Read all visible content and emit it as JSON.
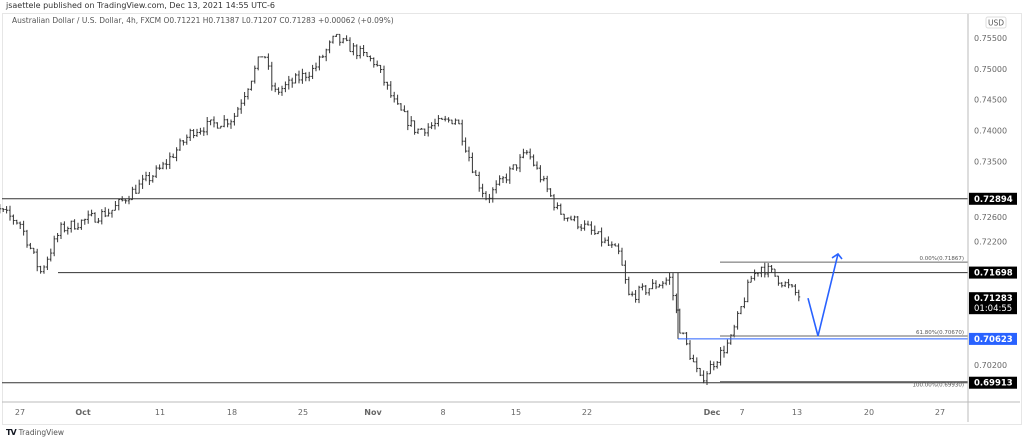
{
  "header": {
    "published": "jsaettele published on TradingView.com, Dec 13, 2021 14:55 UTC-6",
    "legend": "Australian Dollar / U.S. Dollar, 4h, FXCM  O0.71221  H0.71387  L0.71207  C0.71283  +0.00062 (+0.09%)"
  },
  "footer": {
    "logo_text": "TradingView"
  },
  "chart_data": {
    "type": "ohlc-bar",
    "symbol": "Australian Dollar / U.S. Dollar",
    "interval": "4h",
    "currency": "USD",
    "ylim": [
      0.698,
      0.758
    ],
    "y_ticks": [
      "0.75500",
      "0.75000",
      "0.74500",
      "0.74000",
      "0.73500",
      "0.72600",
      "0.72200",
      "0.70200"
    ],
    "x_ticks": [
      "27",
      "Oct",
      "11",
      "18",
      "25",
      "Nov",
      "8",
      "15",
      "22",
      "Dec",
      "7",
      "13",
      "20",
      "27"
    ],
    "approx_close_path": [
      [
        "Sep 23",
        0.729
      ],
      [
        "Sep 27",
        0.725
      ],
      [
        "Sep 29",
        0.717
      ],
      [
        "Oct 1",
        0.724
      ],
      [
        "Oct 6",
        0.727
      ],
      [
        "Oct 8",
        0.73
      ],
      [
        "Oct 11",
        0.734
      ],
      [
        "Oct 14",
        0.74
      ],
      [
        "Oct 18",
        0.742
      ],
      [
        "Oct 21",
        0.753
      ],
      [
        "Oct 22",
        0.746
      ],
      [
        "Oct 26",
        0.75
      ],
      [
        "Oct 28",
        0.755
      ],
      [
        "Nov 1",
        0.751
      ],
      [
        "Nov 3",
        0.744
      ],
      [
        "Nov 5",
        0.74
      ],
      [
        "Nov 9",
        0.742
      ],
      [
        "Nov 11",
        0.732
      ],
      [
        "Nov 12",
        0.729
      ],
      [
        "Nov 16",
        0.7365
      ],
      [
        "Nov 19",
        0.727
      ],
      [
        "Nov 22",
        0.724
      ],
      [
        "Nov 25",
        0.72
      ],
      [
        "Nov 26",
        0.713
      ],
      [
        "Nov 30",
        0.716
      ],
      [
        "Dec 1",
        0.708
      ],
      [
        "Dec 3",
        0.6995
      ],
      [
        "Dec 6",
        0.706
      ],
      [
        "Dec 8",
        0.716
      ],
      [
        "Dec 9",
        0.718
      ],
      [
        "Dec 10",
        0.717
      ],
      [
        "Dec 13",
        0.71283
      ]
    ],
    "horizontal_levels": [
      {
        "price": 0.72894,
        "label": "0.72894"
      },
      {
        "price": 0.71698,
        "label": "0.71698"
      },
      {
        "price": 0.70623,
        "label": "0.70623",
        "color": "#2962ff"
      },
      {
        "price": 0.69913,
        "label": "0.69913"
      }
    ],
    "fibonacci": [
      {
        "level": "0.00%",
        "price": 0.71867,
        "label": "0.00%(0.71867)"
      },
      {
        "level": "61.80%",
        "price": 0.7067,
        "label": "61.80%(0.70670)"
      },
      {
        "level": "100.00%",
        "price": 0.6993,
        "label": "100.00%(0.69930)"
      }
    ],
    "last_price": {
      "price": "0.71283",
      "countdown": "01:04:55"
    },
    "projection": [
      0.71283,
      0.7067,
      0.72
    ],
    "colors": {
      "bars": "#333333",
      "projection": "#2962ff",
      "label_bg": "#000000",
      "blue_label_bg": "#2962ff"
    }
  }
}
